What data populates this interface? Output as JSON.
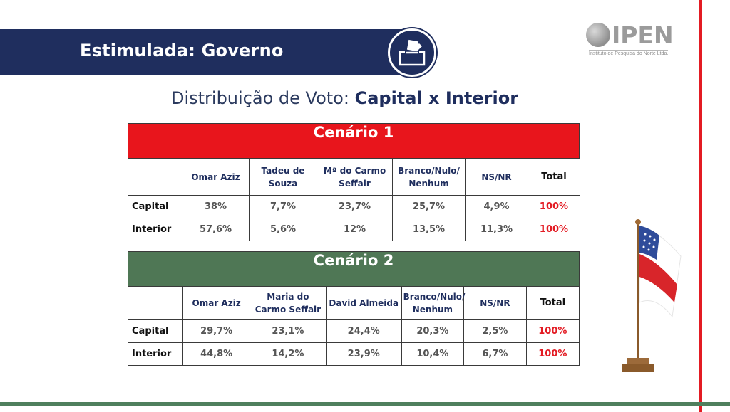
{
  "header": {
    "title": "Estimulada: Governo"
  },
  "logo": {
    "name": "IPEN",
    "subtitle": "Instituto de Pesquisa do Norte Ltda."
  },
  "subtitle": {
    "prefix": "Distribuição de Voto: ",
    "bold": "Capital x Interior"
  },
  "colors": {
    "navy": "#1f2e5e",
    "scenario1": "#e8151c",
    "scenario2": "#4f7755",
    "total": "#e31b23"
  },
  "scenarios": [
    {
      "title": "Cenário 1",
      "headers": [
        "",
        "Omar Aziz",
        "Tadeu de Souza",
        "Mª do Carmo Seffair",
        "Branco/Nulo/ Nenhum",
        "NS/NR",
        "Total"
      ],
      "rows": [
        {
          "label": "Capital",
          "values": [
            "38%",
            "7,7%",
            "23,7%",
            "25,7%",
            "4,9%"
          ],
          "total": "100%"
        },
        {
          "label": "Interior",
          "values": [
            "57,6%",
            "5,6%",
            "12%",
            "13,5%",
            "11,3%"
          ],
          "total": "100%"
        }
      ]
    },
    {
      "title": "Cenário 2",
      "headers": [
        "",
        "Omar Aziz",
        "Maria do Carmo Seffair",
        "David Almeida",
        "Branco/Nulo/ Nenhum",
        "NS/NR",
        "Total"
      ],
      "rows": [
        {
          "label": "Capital",
          "values": [
            "29,7%",
            "23,1%",
            "24,4%",
            "20,3%",
            "2,5%"
          ],
          "total": "100%"
        },
        {
          "label": "Interior",
          "values": [
            "44,8%",
            "14,2%",
            "23,9%",
            "10,4%",
            "6,7%"
          ],
          "total": "100%"
        }
      ]
    }
  ]
}
